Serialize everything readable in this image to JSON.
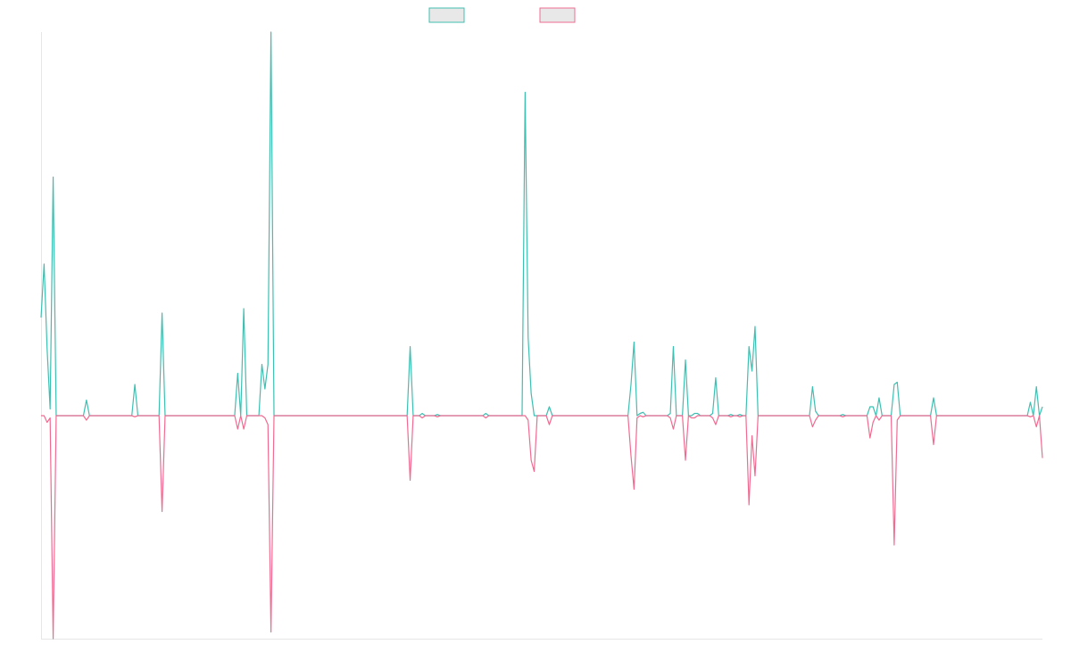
{
  "colors": {
    "background": "#ffffff",
    "axis": "#e6e6e6",
    "legend_fill": "#e8e8e8"
  },
  "chart_data": {
    "type": "line",
    "title": "",
    "xlabel": "",
    "ylabel": "",
    "grid": false,
    "legend_placement": "top-center",
    "ylim": [
      -1.0,
      1.72
    ],
    "series": [
      {
        "color": "#3fbfb2",
        "values": [
          0.44,
          0.68,
          0.3,
          0.03,
          1.07,
          0,
          0,
          0,
          0,
          0,
          0,
          0,
          0,
          0,
          0,
          0.07,
          0,
          0,
          0,
          0,
          0,
          0,
          0,
          0,
          0,
          0,
          0,
          0,
          0,
          0,
          0,
          0.14,
          0,
          0,
          0,
          0,
          0,
          0,
          0,
          0,
          0.46,
          0,
          0,
          0,
          0,
          0,
          0,
          0,
          0,
          0,
          0,
          0,
          0,
          0,
          0,
          0,
          0,
          0,
          0,
          0,
          0,
          0,
          0,
          0,
          0,
          0.19,
          0,
          0.48,
          0,
          0,
          0,
          0,
          0,
          0.23,
          0.12,
          0.23,
          1.72,
          0,
          0,
          0,
          0,
          0,
          0,
          0,
          0,
          0,
          0,
          0,
          0,
          0,
          0,
          0,
          0,
          0,
          0,
          0,
          0,
          0,
          0,
          0,
          0,
          0,
          0,
          0,
          0,
          0,
          0,
          0,
          0,
          0,
          0,
          0,
          0,
          0,
          0,
          0,
          0,
          0,
          0,
          0,
          0,
          0,
          0.31,
          0,
          0,
          0,
          0.01,
          0,
          0,
          0,
          0,
          0.005,
          0,
          0,
          0,
          0,
          0,
          0,
          0,
          0,
          0,
          0,
          0,
          0,
          0,
          0,
          0,
          0.01,
          0,
          0,
          0,
          0,
          0,
          0,
          0,
          0,
          0,
          0,
          0,
          0,
          1.45,
          0.35,
          0.1,
          0,
          0,
          0,
          0,
          0,
          0.04,
          0,
          0,
          0,
          0,
          0,
          0,
          0,
          0,
          0,
          0,
          0,
          0,
          0,
          0,
          0,
          0,
          0,
          0,
          0,
          0,
          0,
          0,
          0,
          0,
          0,
          0,
          0.14,
          0.33,
          0,
          0.01,
          0.015,
          0,
          0,
          0,
          0,
          0,
          0,
          0,
          0,
          0.01,
          0.31,
          0,
          0,
          0,
          0.25,
          0,
          0,
          0.01,
          0.01,
          0,
          0,
          0,
          0,
          0.01,
          0.17,
          0,
          0,
          0,
          0,
          0.005,
          0,
          0,
          0.005,
          0,
          0,
          0.31,
          0.2,
          0.4,
          0,
          0,
          0,
          0,
          0,
          0,
          0,
          0,
          0,
          0,
          0,
          0,
          0,
          0,
          0,
          0,
          0,
          0,
          0.13,
          0.02,
          0,
          0,
          0,
          0,
          0,
          0,
          0,
          0,
          0.005,
          0,
          0,
          0,
          0,
          0,
          0,
          0,
          0,
          0.04,
          0.04,
          0,
          0.08,
          0,
          0,
          0,
          0,
          0.14,
          0.15,
          0,
          0,
          0,
          0,
          0,
          0,
          0,
          0,
          0,
          0,
          0,
          0.08,
          0,
          0,
          0,
          0,
          0,
          0,
          0,
          0,
          0,
          0,
          0,
          0,
          0,
          0,
          0,
          0,
          0,
          0,
          0,
          0,
          0,
          0,
          0,
          0,
          0,
          0,
          0,
          0,
          0,
          0,
          0,
          0.06,
          0,
          0.13,
          0,
          0.04
        ]
      },
      {
        "color": "#f06b92",
        "values": [
          0,
          0,
          -0.03,
          -0.01,
          -1.0,
          0,
          0,
          0,
          0,
          0,
          0,
          0,
          0,
          0,
          0,
          -0.02,
          0,
          0,
          0,
          0,
          0,
          0,
          0,
          0,
          0,
          0,
          0,
          0,
          0,
          0,
          0,
          -0.005,
          0,
          0,
          0,
          0,
          0,
          0,
          0,
          0,
          -0.43,
          0,
          0,
          0,
          0,
          0,
          0,
          0,
          0,
          0,
          0,
          0,
          0,
          0,
          0,
          0,
          0,
          0,
          0,
          0,
          0,
          0,
          0,
          0,
          0,
          -0.06,
          0,
          -0.06,
          0,
          0,
          0,
          0,
          0,
          0,
          -0.01,
          -0.04,
          -0.97,
          0,
          0,
          0,
          0,
          0,
          0,
          0,
          0,
          0,
          0,
          0,
          0,
          0,
          0,
          0,
          0,
          0,
          0,
          0,
          0,
          0,
          0,
          0,
          0,
          0,
          0,
          0,
          0,
          0,
          0,
          0,
          0,
          0,
          0,
          0,
          0,
          0,
          0,
          0,
          0,
          0,
          0,
          0,
          0,
          0,
          -0.29,
          0,
          0,
          0,
          -0.01,
          0,
          0,
          0,
          0,
          -0.005,
          0,
          0,
          0,
          0,
          0,
          0,
          0,
          0,
          0,
          0,
          0,
          0,
          0,
          0,
          0,
          -0.01,
          0,
          0,
          0,
          0,
          0,
          0,
          0,
          0,
          0,
          0,
          0,
          0,
          0,
          -0.02,
          -0.2,
          -0.25,
          0,
          0,
          0,
          0,
          -0.04,
          0,
          0,
          0,
          0,
          0,
          0,
          0,
          0,
          0,
          0,
          0,
          0,
          0,
          0,
          0,
          0,
          0,
          0,
          0,
          0,
          0,
          0,
          0,
          0,
          0,
          0,
          -0.18,
          -0.33,
          -0.01,
          0,
          -0.005,
          0,
          0,
          0,
          0,
          0,
          0,
          0,
          0,
          -0.01,
          -0.06,
          0,
          0,
          0,
          -0.2,
          0,
          -0.01,
          -0.01,
          0,
          0,
          0,
          0,
          0,
          -0.01,
          -0.04,
          0,
          0,
          0,
          0,
          -0.005,
          0,
          0,
          -0.005,
          0,
          0,
          -0.4,
          -0.09,
          -0.27,
          0,
          0,
          0,
          0,
          0,
          0,
          0,
          0,
          0,
          0,
          0,
          0,
          0,
          0,
          0,
          0,
          0,
          0,
          -0.05,
          -0.02,
          0,
          0,
          0,
          0,
          0,
          0,
          0,
          0,
          -0.005,
          0,
          0,
          0,
          0,
          0,
          0,
          0,
          0,
          -0.1,
          -0.03,
          0,
          -0.02,
          0,
          0,
          0,
          0,
          -0.58,
          -0.02,
          0,
          0,
          0,
          0,
          0,
          0,
          0,
          0,
          0,
          0,
          0,
          -0.13,
          0,
          0,
          0,
          0,
          0,
          0,
          0,
          0,
          0,
          0,
          0,
          0,
          0,
          0,
          0,
          0,
          0,
          0,
          0,
          0,
          0,
          0,
          0,
          0,
          0,
          0,
          0,
          0,
          0,
          0,
          0,
          -0.005,
          0,
          -0.05,
          0,
          -0.19
        ]
      }
    ]
  }
}
